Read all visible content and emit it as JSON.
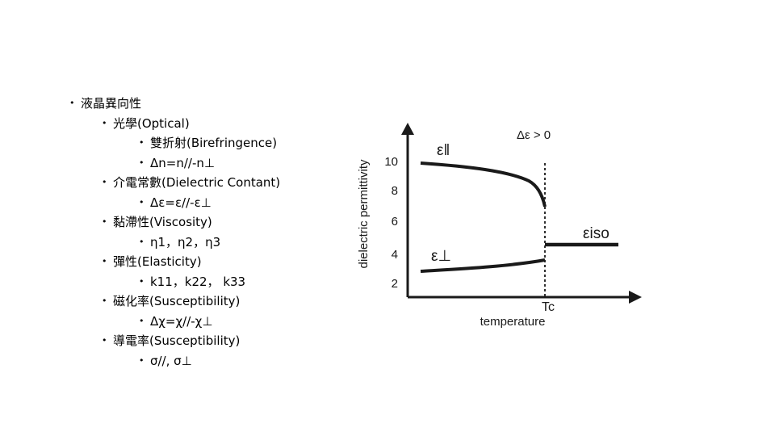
{
  "bullets": [
    {
      "level": 1,
      "text": "液晶異向性"
    },
    {
      "level": 2,
      "text": "光學(Optical)"
    },
    {
      "level": 3,
      "text": "雙折射(Birefringence)"
    },
    {
      "level": 3,
      "text": "Δn=n//-n⊥"
    },
    {
      "level": 2,
      "text": "介電常數(Dielectric Contant)"
    },
    {
      "level": 3,
      "text": "Δε=ε//-ε⊥"
    },
    {
      "level": 2,
      "text": "黏滯性(Viscosity)"
    },
    {
      "level": 3,
      "text": "η1，η2，η3"
    },
    {
      "level": 2,
      "text": "彈性(Elasticity)"
    },
    {
      "level": 3,
      "text": "k11，k22， k33"
    },
    {
      "level": 2,
      "text": "磁化率(Susceptibility)"
    },
    {
      "level": 3,
      "text": "Δχ=χ//-χ⊥"
    },
    {
      "level": 2,
      "text": "導電率(Susceptibility)"
    },
    {
      "level": 3,
      "text": "σ//, σ⊥"
    }
  ],
  "figure": {
    "ylabel": "dielectric permittivity",
    "xlabel": "temperature",
    "yticks": [
      "2",
      "4",
      "6",
      "8",
      "10"
    ],
    "tc_label": "Tc",
    "condition": "Δε > 0",
    "curve_par": "ε‖",
    "curve_perp": "ε⊥",
    "curve_iso": "εiso"
  },
  "colors": {
    "ink": "#1a1a1a",
    "background": "#ffffff"
  }
}
